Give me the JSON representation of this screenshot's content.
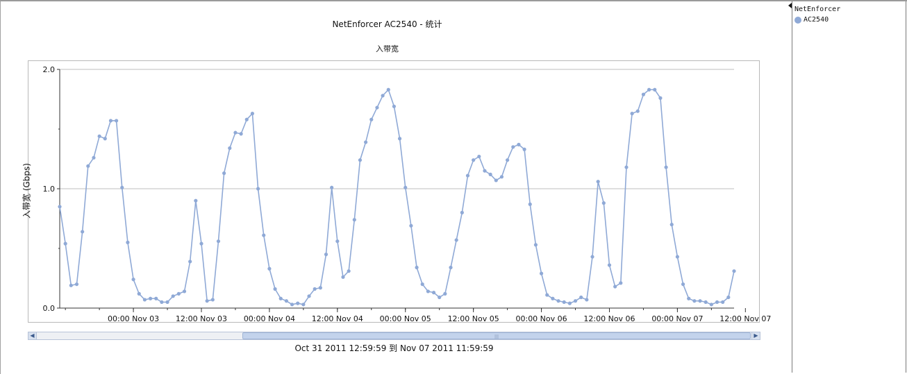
{
  "title": "NetEnforcer AC2540 - 统计",
  "subtitle": "入带宽",
  "range_label": "Oct 31 2011  12:59:59  到  Nov 07 2011  11:59:59",
  "legend": {
    "group": "NetEnforcer",
    "items": [
      {
        "label": "AC2540",
        "color": "#8fa9d6"
      }
    ]
  },
  "scroll": {
    "left_icon": "arrow-left-icon",
    "right_icon": "arrow-right-icon"
  },
  "chart_data": {
    "type": "line",
    "title": "NetEnforcer AC2540 - 统计",
    "subtitle": "入带宽",
    "xlabel": "",
    "ylabel": "入带宽 (Gbps)",
    "ylim": [
      0,
      2.0
    ],
    "yticks": [
      "0.0",
      "1.0",
      "2.0"
    ],
    "xticks": [
      "00:00 Nov 03",
      "12:00 Nov 03",
      "00:00 Nov 04",
      "12:00 Nov 04",
      "00:00 Nov 05",
      "12:00 Nov 05",
      "00:00 Nov 06",
      "12:00 Nov 06",
      "00:00 Nov 07",
      "12:00 Nov 07"
    ],
    "x_start": "Nov 02 11:00",
    "x_end": "Nov 07 11:59",
    "x_interval_hours": 1,
    "grid": true,
    "legend_position": "right-panel",
    "series": [
      {
        "name": "AC2540",
        "color": "#8fa9d6",
        "values": [
          0.85,
          0.54,
          0.19,
          0.2,
          0.64,
          1.19,
          1.26,
          1.44,
          1.42,
          1.57,
          1.57,
          1.01,
          0.55,
          0.24,
          0.12,
          0.07,
          0.08,
          0.08,
          0.05,
          0.05,
          0.1,
          0.12,
          0.14,
          0.39,
          0.9,
          0.54,
          0.06,
          0.07,
          0.56,
          1.13,
          1.34,
          1.47,
          1.46,
          1.58,
          1.63,
          1.0,
          0.61,
          0.33,
          0.16,
          0.08,
          0.06,
          0.03,
          0.04,
          0.03,
          0.1,
          0.16,
          0.17,
          0.45,
          1.01,
          0.56,
          0.26,
          0.31,
          0.74,
          1.24,
          1.39,
          1.58,
          1.68,
          1.78,
          1.83,
          1.69,
          1.42,
          1.01,
          0.69,
          0.34,
          0.2,
          0.14,
          0.13,
          0.09,
          0.12,
          0.34,
          0.57,
          0.8,
          1.11,
          1.24,
          1.27,
          1.15,
          1.12,
          1.07,
          1.1,
          1.24,
          1.35,
          1.37,
          1.33,
          0.87,
          0.53,
          0.29,
          0.11,
          0.08,
          0.06,
          0.05,
          0.04,
          0.06,
          0.09,
          0.07,
          0.43,
          1.06,
          0.88,
          0.36,
          0.18,
          0.21,
          1.18,
          1.63,
          1.65,
          1.79,
          1.83,
          1.83,
          1.76,
          1.18,
          0.7,
          0.43,
          0.2,
          0.08,
          0.06,
          0.06,
          0.05,
          0.03,
          0.05,
          0.05,
          0.09,
          0.31
        ]
      }
    ]
  }
}
